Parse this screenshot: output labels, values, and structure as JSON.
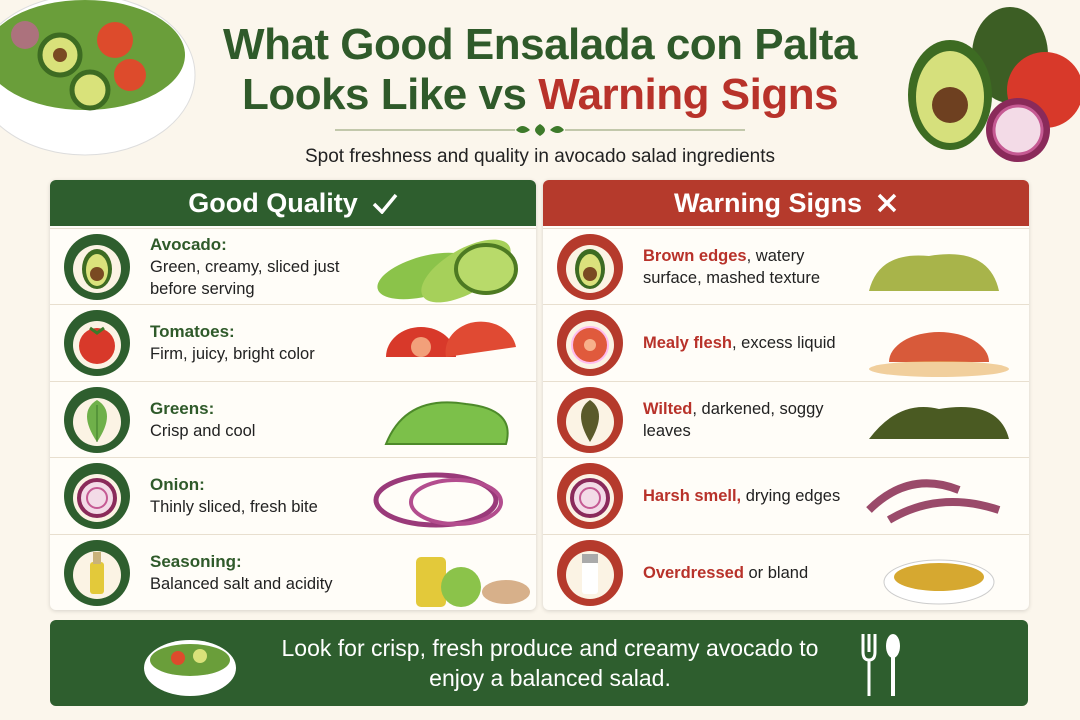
{
  "header": {
    "title_line1": "What Good Ensalada con Palta",
    "title_line2_start": "Looks Like vs",
    "title_line2_highlight": "Warning Signs",
    "subtitle": "Spot freshness and quality in avocado salad ingredients"
  },
  "good": {
    "heading": "Good Quality",
    "items": [
      {
        "name": "Avocado:",
        "description": "Green, creamy, sliced just before serving"
      },
      {
        "name": "Tomatoes:",
        "description": "Firm, juicy, bright color"
      },
      {
        "name": "Greens:",
        "description": "Crisp and cool"
      },
      {
        "name": "Onion:",
        "description": "Thinly sliced, fresh bite"
      },
      {
        "name": "Seasoning:",
        "description": "Balanced salt and acidity"
      }
    ]
  },
  "warning": {
    "heading": "Warning Signs",
    "items": [
      {
        "highlight": "Brown edges",
        "rest": ", watery surface, mashed texture"
      },
      {
        "highlight": "Mealy flesh",
        "rest": ", excess liquid"
      },
      {
        "highlight": "Wilted",
        "rest": ", darkened, soggy leaves"
      },
      {
        "highlight": "Harsh smell,",
        "rest": " drying edges"
      },
      {
        "highlight": "Overdressed",
        "rest": " or bland"
      }
    ]
  },
  "footer": {
    "message": "Look for crisp, fresh produce and creamy avocado to enjoy a balanced salad."
  }
}
